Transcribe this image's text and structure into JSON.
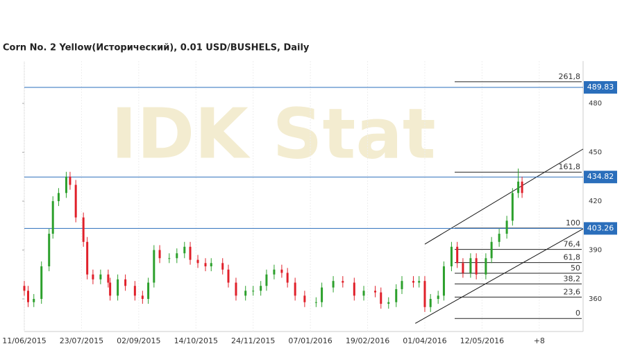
{
  "chart_data": {
    "type": "candlestick",
    "title": "Corn  No. 2 Yellow(Исторический), 0.01 USD/BUSHELS, Daily",
    "watermark": "IDK Stat",
    "xlim": [
      0,
      293
    ],
    "xticks": [
      {
        "value": 0,
        "label": "11/06/2015"
      },
      {
        "value": 30,
        "label": "23/07/2015"
      },
      {
        "value": 60,
        "label": "02/09/2015"
      },
      {
        "value": 90,
        "label": "14/10/2015"
      },
      {
        "value": 120,
        "label": "24/11/2015"
      },
      {
        "value": 150,
        "label": "07/01/2016"
      },
      {
        "value": 180,
        "label": "19/02/2016"
      },
      {
        "value": 210,
        "label": "01/04/2016"
      },
      {
        "value": 240,
        "label": "12/05/2016"
      },
      {
        "value": 270,
        "label": "+8"
      }
    ],
    "ylim": [
      340,
      506
    ],
    "yticks": [
      360,
      390,
      420,
      450,
      480
    ],
    "up_color": "#2ca02c",
    "down_color": "#e0202a",
    "x": [
      0,
      2,
      5,
      9,
      13,
      15,
      18,
      22,
      24,
      27,
      31,
      33,
      36,
      40,
      44,
      45,
      49,
      53,
      58,
      62,
      65,
      68,
      71,
      76,
      80,
      84,
      87,
      91,
      95,
      98,
      104,
      107,
      111,
      116,
      120,
      124,
      127,
      131,
      135,
      138,
      142,
      147,
      153,
      156,
      162,
      167,
      173,
      178,
      184,
      187,
      191,
      195,
      198,
      204,
      207,
      210,
      213,
      217,
      220,
      224,
      227,
      230,
      234,
      237,
      242,
      245,
      249,
      253,
      256,
      259,
      261
    ],
    "open": [
      368,
      365,
      358,
      360,
      380,
      400,
      420,
      425,
      435,
      430,
      410,
      395,
      375,
      372,
      375,
      370,
      362,
      372,
      368,
      362,
      360,
      370,
      390,
      385,
      385,
      388,
      392,
      384,
      382,
      380,
      382,
      378,
      370,
      362,
      365,
      365,
      368,
      375,
      378,
      376,
      370,
      362,
      358,
      358,
      367,
      371,
      370,
      362,
      365,
      364,
      357,
      358,
      366,
      371,
      370,
      371,
      355,
      360,
      362,
      380,
      392,
      382,
      376,
      385,
      375,
      385,
      395,
      400,
      408,
      425,
      432
    ],
    "high": [
      371,
      368,
      363,
      383,
      403,
      423,
      428,
      438,
      438,
      433,
      413,
      398,
      378,
      378,
      378,
      373,
      375,
      375,
      371,
      365,
      373,
      393,
      393,
      388,
      391,
      395,
      395,
      387,
      385,
      385,
      385,
      381,
      373,
      368,
      368,
      371,
      378,
      381,
      381,
      379,
      373,
      365,
      361,
      370,
      374,
      374,
      373,
      368,
      368,
      367,
      361,
      369,
      374,
      374,
      374,
      374,
      363,
      365,
      383,
      395,
      395,
      385,
      388,
      388,
      388,
      398,
      403,
      411,
      428,
      440,
      435
    ],
    "low": [
      362,
      355,
      355,
      357,
      377,
      397,
      417,
      422,
      427,
      407,
      392,
      372,
      369,
      369,
      367,
      359,
      359,
      365,
      359,
      357,
      357,
      367,
      382,
      382,
      382,
      385,
      381,
      379,
      377,
      377,
      375,
      367,
      359,
      359,
      362,
      362,
      365,
      372,
      373,
      367,
      359,
      355,
      355,
      355,
      364,
      367,
      359,
      359,
      361,
      354,
      354,
      355,
      363,
      367,
      367,
      352,
      352,
      357,
      359,
      377,
      379,
      373,
      373,
      372,
      372,
      382,
      392,
      397,
      405,
      422,
      422
    ],
    "close": [
      365,
      358,
      360,
      380,
      400,
      420,
      425,
      435,
      430,
      410,
      395,
      375,
      372,
      375,
      370,
      362,
      372,
      368,
      362,
      360,
      370,
      390,
      385,
      385,
      388,
      392,
      384,
      382,
      380,
      382,
      378,
      370,
      362,
      365,
      365,
      368,
      375,
      378,
      376,
      370,
      362,
      358,
      358,
      367,
      371,
      370,
      362,
      365,
      364,
      357,
      358,
      366,
      371,
      370,
      371,
      355,
      360,
      362,
      380,
      392,
      382,
      376,
      385,
      375,
      385,
      395,
      400,
      408,
      425,
      432,
      425
    ],
    "hlines": [
      489.83,
      434.82,
      403.26
    ],
    "hline_color": "#2a6ebb",
    "fib": {
      "low": 348,
      "high": 403.5,
      "levels": [
        {
          "value": 261.8,
          "label": "261,8"
        },
        {
          "value": 161.8,
          "label": "161,8"
        },
        100,
        {
          "value": 76.4,
          "label": "76,4"
        },
        {
          "value": 61.8,
          "label": "61,8"
        },
        50,
        {
          "value": 38.2,
          "label": "38,2"
        },
        {
          "value": 23.6,
          "label": "23,6"
        },
        0
      ]
    },
    "trend_lines": [
      [
        205,
        345,
        293,
        403
      ],
      [
        210,
        393.6,
        293,
        452
      ]
    ]
  }
}
